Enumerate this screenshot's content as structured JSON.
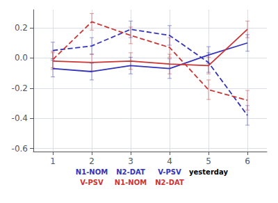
{
  "chart_data": {
    "type": "line",
    "x": [
      1,
      2,
      3,
      4,
      5,
      6
    ],
    "xlim": [
      0.5,
      6.5
    ],
    "xticks": [
      1,
      2,
      3,
      4,
      5,
      6
    ],
    "ylim": [
      -0.62,
      0.32
    ],
    "yticks": [
      -0.6,
      -0.4,
      -0.2,
      {
        "value": 0,
        "label": "0.0"
      },
      0.2
    ],
    "grid": true,
    "series": [
      {
        "color": "#3333bb",
        "line_style": "solid",
        "values": [
          -0.07,
          -0.09,
          -0.05,
          -0.07,
          0.02,
          0.1
        ],
        "errors": [
          0.055,
          0.055,
          0.055,
          0.065,
          0.055,
          0.055
        ]
      },
      {
        "color": "#3333bb",
        "line_style": "dashed",
        "values": [
          0.05,
          0.08,
          0.19,
          0.15,
          -0.03,
          -0.38
        ],
        "errors": [
          0.055,
          0.055,
          0.055,
          0.065,
          0.065,
          0.065
        ]
      },
      {
        "color": "#cc3333",
        "line_style": "solid",
        "values": [
          -0.02,
          -0.03,
          -0.02,
          -0.04,
          -0.05,
          0.19
        ],
        "errors": [
          0.055,
          0.055,
          0.055,
          0.065,
          0.055,
          0.055
        ]
      },
      {
        "color": "#cc3333",
        "line_style": "dashed",
        "values": [
          -0.01,
          0.24,
          0.15,
          0.07,
          -0.21,
          -0.28
        ],
        "errors": [
          0.055,
          0.055,
          0.055,
          0.065,
          0.065,
          0.065
        ]
      }
    ],
    "annotations": [
      {
        "x": 2,
        "texts": [
          {
            "text": "N1-NOM",
            "color": "#3333bb"
          },
          {
            "text": "V-PSV",
            "color": "#cc3333"
          }
        ]
      },
      {
        "x": 3,
        "texts": [
          {
            "text": "N2-DAT",
            "color": "#3333bb"
          },
          {
            "text": "N1-NOM",
            "color": "#cc3333"
          }
        ]
      },
      {
        "x": 4,
        "texts": [
          {
            "text": "V-PSV",
            "color": "#3333bb"
          },
          {
            "text": "N2-DAT",
            "color": "#cc3333"
          }
        ]
      },
      {
        "x": 5,
        "texts": [
          {
            "text": "yesterday",
            "color": "#000000"
          }
        ]
      }
    ]
  }
}
